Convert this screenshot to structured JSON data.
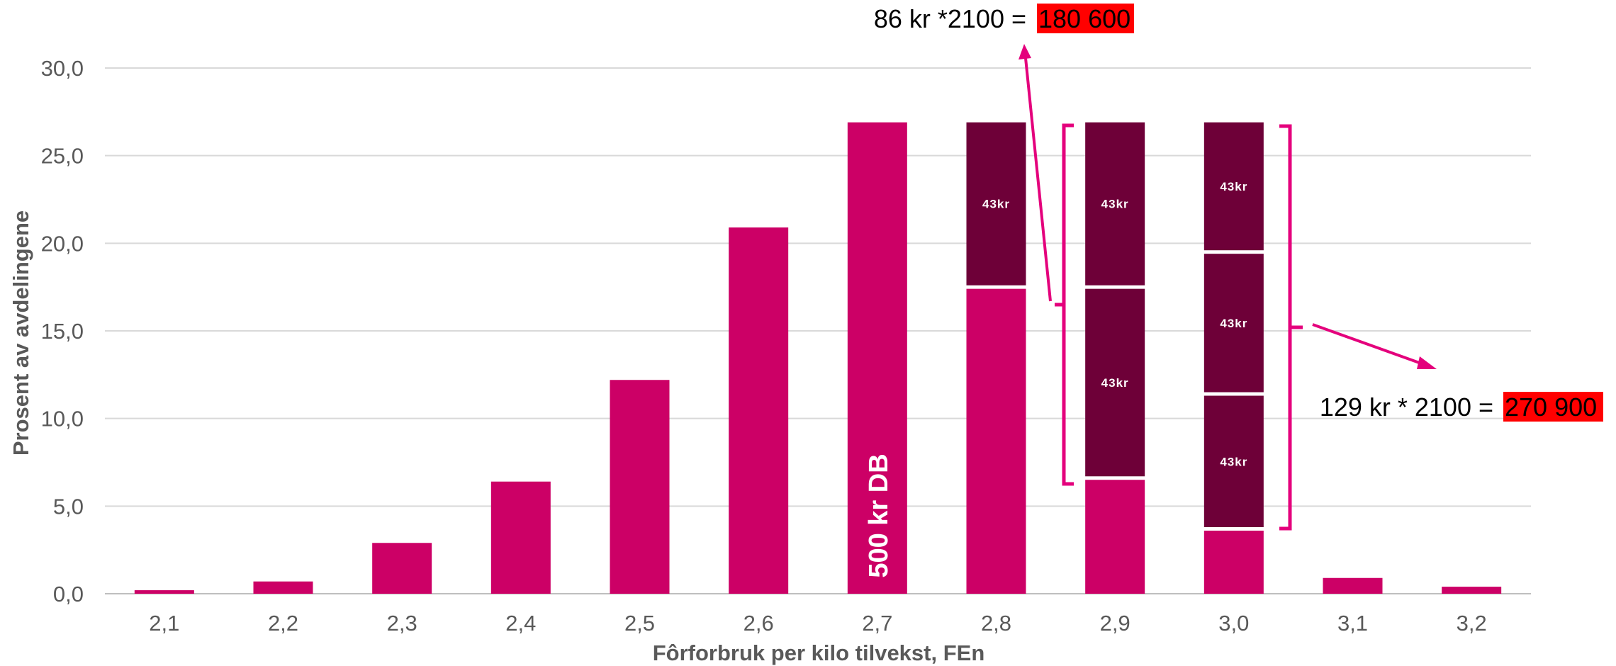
{
  "chart_data": {
    "type": "bar",
    "categories": [
      "2,1",
      "2,2",
      "2,3",
      "2,4",
      "2,5",
      "2,6",
      "2,7",
      "2,8",
      "2,9",
      "3,0",
      "3,1",
      "3,2"
    ],
    "values": [
      0.2,
      0.7,
      2.9,
      6.4,
      12.2,
      20.9,
      26.9,
      26.9,
      26.9,
      26.9,
      0.9,
      0.4
    ],
    "base_values": [
      0.2,
      0.7,
      2.9,
      6.4,
      12.2,
      20.9,
      26.9,
      17.4,
      6.5,
      3.6,
      0.9,
      0.4
    ],
    "stacked_segments": [
      {
        "category": "2,8",
        "from": 17.6,
        "to": 26.9,
        "label": "43kr"
      },
      {
        "category": "2,9",
        "from": 6.7,
        "to": 17.4,
        "label": "43kr"
      },
      {
        "category": "2,9",
        "from": 17.6,
        "to": 26.9,
        "label": "43kr"
      },
      {
        "category": "3,0",
        "from": 3.8,
        "to": 11.3,
        "label": "43kr"
      },
      {
        "category": "3,0",
        "from": 11.5,
        "to": 19.4,
        "label": "43kr"
      },
      {
        "category": "3,0",
        "from": 19.6,
        "to": 26.9,
        "label": "43kr"
      }
    ],
    "bar_text": {
      "category": "2,7",
      "text": "500 kr DB"
    },
    "yticks": [
      "0,0",
      "5,0",
      "10,0",
      "15,0",
      "20,0",
      "25,0",
      "30,0"
    ],
    "ylim": [
      0,
      30
    ],
    "xlabel": "Fôrforbruk per kilo tilvekst, FEn",
    "ylabel": "Prosent av avdelingene",
    "grid": true,
    "annotations": [
      {
        "text": "86 kr *2100 = ",
        "highlight": "180 600"
      },
      {
        "text": "129 kr * 2100 = ",
        "highlight": "270 900"
      }
    ],
    "colors": {
      "bar": "#cc0066",
      "stack": "#6e0038",
      "annotation_line": "#e4007c",
      "highlight": "#ff0000",
      "grid": "#d9d9d9",
      "text": "#595959"
    }
  }
}
